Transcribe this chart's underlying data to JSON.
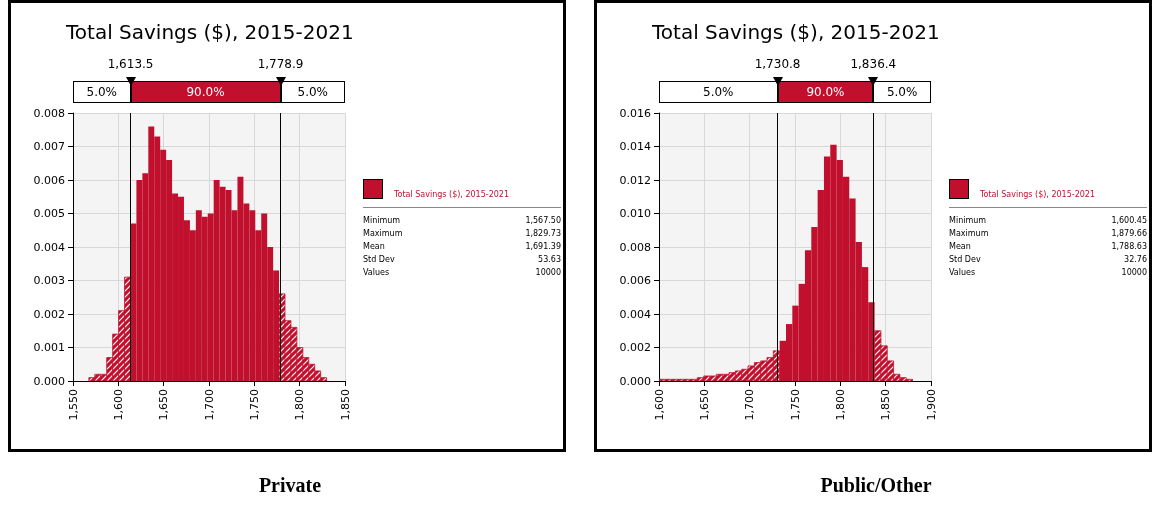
{
  "chart_data": [
    {
      "type": "histogram",
      "title": "Total Savings ($), 2015-2021",
      "subtitle": "Private",
      "bins": [
        1567.5,
        1574.06,
        1580.61,
        1587.17,
        1593.72,
        1600.28,
        1606.83,
        1613.39,
        1619.95,
        1626.5,
        1633.06,
        1639.61,
        1646.17,
        1652.72,
        1659.28,
        1665.84,
        1672.39,
        1678.95,
        1685.5,
        1692.06,
        1698.62,
        1705.17,
        1711.73,
        1718.28,
        1724.84,
        1731.39,
        1737.95,
        1744.51,
        1751.06,
        1757.62,
        1764.17,
        1770.73,
        1777.28,
        1783.84,
        1790.4,
        1796.95,
        1803.51,
        1810.06,
        1816.62,
        1823.17,
        1829.73
      ],
      "series": [
        {
          "name": "Total Savings ($), 2015-2021",
          "color": "#c0102e",
          "values": [
            0.0001,
            0.0002,
            0.0002,
            0.0007,
            0.0014,
            0.0021,
            0.0031,
            0.0047,
            0.006,
            0.0062,
            0.0076,
            0.0073,
            0.0069,
            0.0066,
            0.0056,
            0.0055,
            0.0048,
            0.0045,
            0.0051,
            0.0049,
            0.005,
            0.006,
            0.0058,
            0.0057,
            0.0051,
            0.0061,
            0.0053,
            0.0051,
            0.0045,
            0.005,
            0.004,
            0.0033,
            0.0026,
            0.0018,
            0.0016,
            0.001,
            0.0007,
            0.0005,
            0.0003,
            0.0001
          ]
        }
      ],
      "xlim": [
        1550,
        1850
      ],
      "xticks": [
        {
          "value": 1550,
          "label": "1,550"
        },
        {
          "value": 1600,
          "label": "1,600"
        },
        {
          "value": 1650,
          "label": "1,650"
        },
        {
          "value": 1700,
          "label": "1,700"
        },
        {
          "value": 1750,
          "label": "1,750"
        },
        {
          "value": 1800,
          "label": "1,800"
        },
        {
          "value": 1850,
          "label": "1,850"
        }
      ],
      "ylim": [
        0,
        0.008
      ],
      "yticks": [
        {
          "value": 0,
          "label": "0.000"
        },
        {
          "value": 0.001,
          "label": "0.001"
        },
        {
          "value": 0.002,
          "label": "0.002"
        },
        {
          "value": 0.003,
          "label": "0.003"
        },
        {
          "value": 0.004,
          "label": "0.004"
        },
        {
          "value": 0.005,
          "label": "0.005"
        },
        {
          "value": 0.006,
          "label": "0.006"
        },
        {
          "value": 0.007,
          "label": "0.007"
        },
        {
          "value": 0.008,
          "label": "0.008"
        }
      ],
      "grid": true,
      "legend": "right",
      "ref_lines": [
        {
          "axis": "x",
          "value": 1613.5,
          "label": "1,613.5"
        },
        {
          "axis": "x",
          "value": 1778.9,
          "label": "1,778.9"
        }
      ],
      "annotations": [
        "5.0%",
        "90.0%",
        "5.0%",
        "Minimum\t1,567.50",
        "Maximum\t1,829.73",
        "Mean\t1,691.39",
        "Std Dev\t53.63",
        "Values\t10000"
      ]
    },
    {
      "type": "histogram",
      "title": "Total Savings ($), 2015-2021",
      "subtitle": "Public/Other",
      "bins": [
        1600.45,
        1607.43,
        1614.41,
        1621.39,
        1628.37,
        1635.35,
        1642.33,
        1649.31,
        1656.29,
        1663.27,
        1670.25,
        1677.23,
        1684.21,
        1691.19,
        1698.17,
        1705.15,
        1712.13,
        1719.11,
        1726.09,
        1733.07,
        1740.06,
        1747.04,
        1754.02,
        1761,
        1767.98,
        1774.96,
        1781.94,
        1788.92,
        1795.9,
        1802.88,
        1809.86,
        1816.84,
        1823.82,
        1830.8,
        1837.78,
        1844.76,
        1851.74,
        1858.72,
        1865.7,
        1872.68,
        1879.66
      ],
      "series": [
        {
          "name": "Total Savings ($), 2015-2021",
          "color": "#c0102e",
          "values": [
            0.0001,
            0.0001,
            0.0001,
            0.0001,
            0.0001,
            0.0001,
            0.0002,
            0.0003,
            0.0003,
            0.0004,
            0.0004,
            0.0005,
            0.0006,
            0.0007,
            0.0009,
            0.0011,
            0.0012,
            0.0014,
            0.0018,
            0.0024,
            0.0034,
            0.0045,
            0.0058,
            0.0078,
            0.0092,
            0.0114,
            0.0134,
            0.0141,
            0.0132,
            0.0122,
            0.0109,
            0.0083,
            0.0068,
            0.0047,
            0.003,
            0.0021,
            0.0012,
            0.0004,
            0.0002,
            0.0001
          ]
        }
      ],
      "xlim": [
        1600,
        1900
      ],
      "xticks": [
        {
          "value": 1600,
          "label": "1,600"
        },
        {
          "value": 1650,
          "label": "1,650"
        },
        {
          "value": 1700,
          "label": "1,700"
        },
        {
          "value": 1750,
          "label": "1,750"
        },
        {
          "value": 1800,
          "label": "1,800"
        },
        {
          "value": 1850,
          "label": "1,850"
        },
        {
          "value": 1900,
          "label": "1,900"
        }
      ],
      "ylim": [
        0,
        0.016
      ],
      "yticks": [
        {
          "value": 0,
          "label": "0.000"
        },
        {
          "value": 0.002,
          "label": "0.002"
        },
        {
          "value": 0.004,
          "label": "0.004"
        },
        {
          "value": 0.006,
          "label": "0.006"
        },
        {
          "value": 0.008,
          "label": "0.008"
        },
        {
          "value": 0.01,
          "label": "0.010"
        },
        {
          "value": 0.012,
          "label": "0.012"
        },
        {
          "value": 0.014,
          "label": "0.014"
        },
        {
          "value": 0.016,
          "label": "0.016"
        }
      ],
      "grid": true,
      "legend": "right",
      "ref_lines": [
        {
          "axis": "x",
          "value": 1730.8,
          "label": "1,730.8"
        },
        {
          "axis": "x",
          "value": 1836.4,
          "label": "1,836.4"
        }
      ],
      "annotations": [
        "5.0%",
        "90.0%",
        "5.0%",
        "Minimum\t1,600.45",
        "Maximum\t1,879.66",
        "Mean\t1,788.63",
        "Std Dev\t32.76",
        "Values\t10000"
      ]
    }
  ]
}
